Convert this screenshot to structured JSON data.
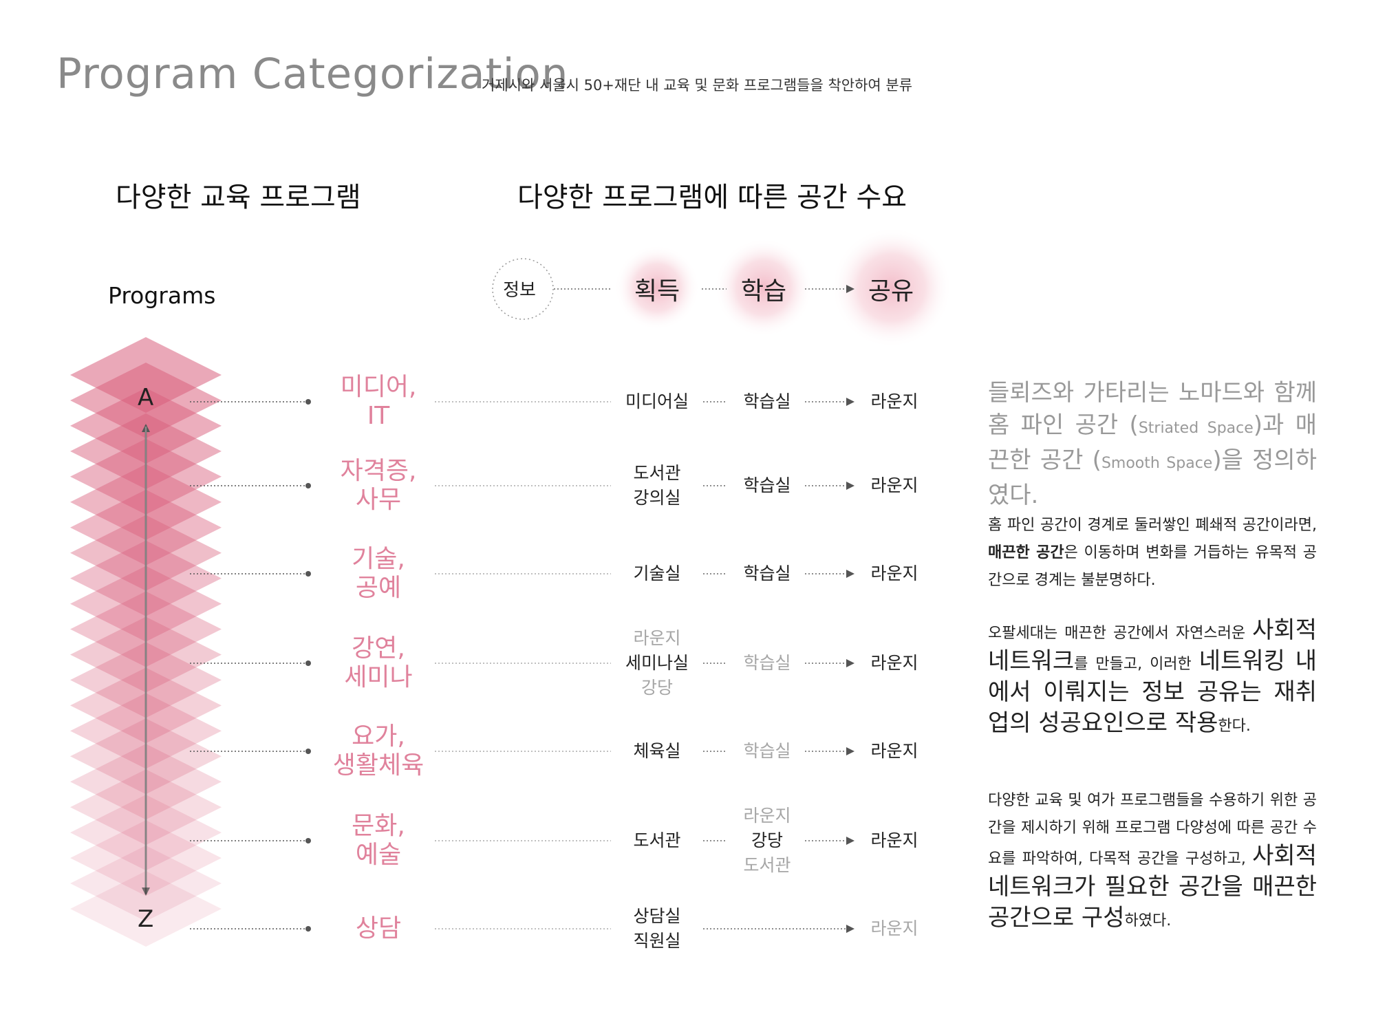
{
  "header": {
    "title": "Program Categorization",
    "subtitle": "거제시와 서울시 50+재단  내 교육 및 문화 프로그램들을 착안하여 분류"
  },
  "left_heading": "다양한 교육 프로그램",
  "mid_heading": "다양한 프로그램에 따른 공간 수요",
  "programs_label": "Programs",
  "axis": {
    "top": "A",
    "bottom": "Z"
  },
  "stages": [
    {
      "label": "정보"
    },
    {
      "label": "획득"
    },
    {
      "label": "학습"
    },
    {
      "label": "공유"
    }
  ],
  "rows": [
    {
      "category": [
        "미디어,",
        "IT"
      ],
      "acquire": [
        {
          "t": "미디어실",
          "muted": false
        }
      ],
      "learn": [
        {
          "t": "학습실",
          "muted": false
        }
      ],
      "share": {
        "t": "라운지",
        "muted": false
      }
    },
    {
      "category": [
        "자격증,",
        "사무"
      ],
      "acquire": [
        {
          "t": "도서관",
          "muted": false
        },
        {
          "t": "강의실",
          "muted": false
        }
      ],
      "learn": [
        {
          "t": "학습실",
          "muted": false
        }
      ],
      "share": {
        "t": "라운지",
        "muted": false
      }
    },
    {
      "category": [
        "기술,",
        "공예"
      ],
      "acquire": [
        {
          "t": "기술실",
          "muted": false
        }
      ],
      "learn": [
        {
          "t": "학습실",
          "muted": false
        }
      ],
      "share": {
        "t": "라운지",
        "muted": false
      }
    },
    {
      "category": [
        "강연,",
        "세미나"
      ],
      "acquire": [
        {
          "t": "라운지",
          "muted": true
        },
        {
          "t": "세미나실",
          "muted": false
        },
        {
          "t": "강당",
          "muted": true
        }
      ],
      "learn": [
        {
          "t": "학습실",
          "muted": true
        }
      ],
      "share": {
        "t": "라운지",
        "muted": false
      }
    },
    {
      "category": [
        "요가,",
        "생활체육"
      ],
      "acquire": [
        {
          "t": "체육실",
          "muted": false
        }
      ],
      "learn": [
        {
          "t": "학습실",
          "muted": true
        }
      ],
      "share": {
        "t": "라운지",
        "muted": false
      }
    },
    {
      "category": [
        "문화,",
        "예술"
      ],
      "acquire": [
        {
          "t": "도서관",
          "muted": false
        }
      ],
      "learn": [
        {
          "t": "라운지",
          "muted": true
        },
        {
          "t": "강당",
          "muted": false
        },
        {
          "t": "도서관",
          "muted": true
        }
      ],
      "share": {
        "t": "라운지",
        "muted": false
      }
    },
    {
      "category": [
        "상담"
      ],
      "acquire": [
        {
          "t": "상담실",
          "muted": false
        },
        {
          "t": "직원실",
          "muted": false
        }
      ],
      "learn": [],
      "share": {
        "t": "라운지",
        "muted": true
      }
    }
  ],
  "paragraphs": {
    "p1": {
      "a": "들뢰즈와 가타리는 노마드와 함께 홈 파인 공간 (",
      "b": "Striated Space",
      "c": ")과 매끈한 공간 (",
      "d": "Smooth Space",
      "e": ")을 정의하였다."
    },
    "p2": {
      "a": "홈 파인 공간이 경계로 둘러쌓인 폐쇄적 공간이라면, ",
      "b": "매끈한 공간",
      "c": "은 이동하며 변화를 거듭하는 유목적 공간으로 경계는 불분명하다."
    },
    "p3": {
      "a": "오팔세대는 매끈한 공간에서 자연스러운 ",
      "b": "사회적 네트워크",
      "c": "를 만들고, 이러한 ",
      "d": "네트워킹 내에서 이뤄지는 정보 공유는 재취업의 성공요인으로 작용",
      "e": "한다."
    },
    "p4": {
      "a": "다양한 교육 및 여가 프로그램들을 수용하기 위한 공간을 제시하기 위해 프로그램 다양성에 따른 공간 수요를 파악하여, 다목적 공간을 구성하고, ",
      "b": "사회적 네트워크가 필요한 공간을 매끈한 공간으로 구성",
      "c": "하였다."
    }
  },
  "colors": {
    "accent_pink": "#e0829c",
    "diamond": "#d9607d",
    "muted": "#a6a6a6",
    "glow": "#f2b6c4"
  }
}
